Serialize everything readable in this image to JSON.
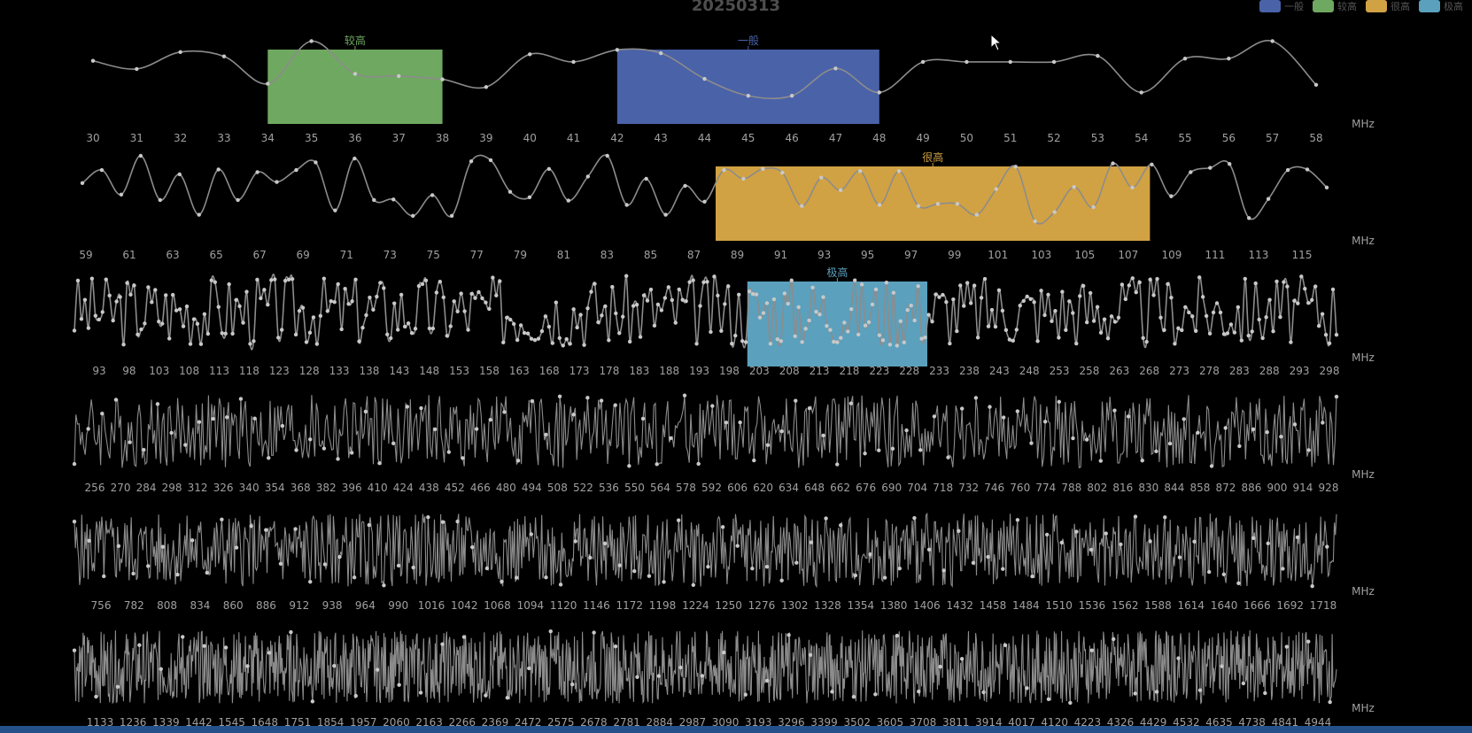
{
  "title": "20250313",
  "legend": [
    {
      "label": "一般",
      "color": "#4a62a8"
    },
    {
      "label": "较高",
      "color": "#6fa860"
    },
    {
      "label": "很高",
      "color": "#d1a243"
    },
    {
      "label": "极高",
      "color": "#5ba0bd"
    }
  ],
  "unit_label": "MHz",
  "chart_data": [
    {
      "type": "line",
      "xlabel": "MHz",
      "x_ticks": [
        "30",
        "31",
        "32",
        "33",
        "34",
        "35",
        "36",
        "37",
        "38",
        "39",
        "40",
        "41",
        "42",
        "43",
        "44",
        "45",
        "46",
        "47",
        "48",
        "49",
        "50",
        "51",
        "52",
        "53",
        "54",
        "55",
        "56",
        "57",
        "58"
      ],
      "x_range": [
        30,
        58
      ],
      "values": [
        0.8,
        0.65,
        0.96,
        0.88,
        0.38,
        1.16,
        0.56,
        0.52,
        0.46,
        0.32,
        0.92,
        0.78,
        1.0,
        0.94,
        0.47,
        0.16,
        0.16,
        0.66,
        0.22,
        0.78,
        0.78,
        0.78,
        0.78,
        0.89,
        0.22,
        0.84,
        0.84,
        1.16,
        0.36
      ],
      "highlights": [
        {
          "level": "较高",
          "from": 34,
          "to": 38
        },
        {
          "level": "一般",
          "from": 42,
          "to": 48
        }
      ]
    },
    {
      "type": "line",
      "xlabel": "MHz",
      "x_ticks": [
        "59",
        "61",
        "63",
        "65",
        "67",
        "69",
        "71",
        "73",
        "75",
        "77",
        "79",
        "81",
        "83",
        "85",
        "87",
        "89",
        "91",
        "93",
        "95",
        "97",
        "99",
        "101",
        "103",
        "105",
        "107",
        "109",
        "111",
        "113",
        "115"
      ],
      "x_range": [
        59,
        116
      ],
      "values": [
        0.7,
        0.94,
        0.49,
        1.2,
        0.39,
        0.86,
        0.12,
        0.95,
        0.39,
        0.9,
        0.72,
        0.94,
        1.08,
        0.2,
        1.15,
        0.39,
        0.4,
        0.1,
        0.48,
        0.1,
        1.1,
        1.12,
        0.54,
        0.44,
        0.96,
        0.38,
        0.82,
        1.2,
        0.3,
        0.78,
        0.12,
        0.65,
        0.36,
        0.94,
        0.78,
        0.96,
        0.89,
        0.28,
        0.8,
        0.57,
        0.92,
        0.3,
        0.92,
        0.28,
        0.32,
        0.32,
        0.12,
        0.59,
        1.0,
        0.0,
        0.17,
        0.63,
        0.26,
        1.06,
        0.62,
        1.04,
        0.46,
        0.9,
        0.98,
        1.05,
        0.06,
        0.41,
        0.94,
        0.95,
        0.62
      ],
      "highlights": [
        {
          "level": "很高",
          "from": 88,
          "to": 108
        }
      ]
    },
    {
      "type": "line",
      "xlabel": "MHz",
      "x_ticks": [
        "93",
        "98",
        "103",
        "108",
        "113",
        "118",
        "123",
        "128",
        "133",
        "138",
        "143",
        "148",
        "153",
        "158",
        "163",
        "168",
        "173",
        "178",
        "183",
        "188",
        "193",
        "198",
        "203",
        "208",
        "213",
        "218",
        "223",
        "228",
        "233",
        "238",
        "243",
        "248",
        "253",
        "258",
        "263",
        "268",
        "273",
        "278",
        "283",
        "288",
        "293",
        "298"
      ],
      "x_range": [
        90,
        300
      ],
      "seed": 3,
      "samples": 360,
      "highlights": [
        {
          "level": "极高",
          "from": 201,
          "to": 231
        }
      ]
    },
    {
      "type": "line",
      "xlabel": "MHz",
      "x_ticks": [
        "256",
        "270",
        "284",
        "298",
        "312",
        "326",
        "340",
        "354",
        "368",
        "382",
        "396",
        "410",
        "424",
        "438",
        "452",
        "466",
        "480",
        "494",
        "508",
        "522",
        "536",
        "550",
        "564",
        "578",
        "592",
        "606",
        "620",
        "634",
        "648",
        "662",
        "676",
        "690",
        "704",
        "718",
        "732",
        "746",
        "760",
        "774",
        "788",
        "802",
        "816",
        "830",
        "844",
        "858",
        "872",
        "886",
        "900",
        "914",
        "928"
      ],
      "x_range": [
        250,
        935
      ],
      "seed": 4,
      "samples": 820
    },
    {
      "type": "line",
      "xlabel": "MHz",
      "x_ticks": [
        "756",
        "782",
        "808",
        "834",
        "860",
        "886",
        "912",
        "938",
        "964",
        "990",
        "1016",
        "1042",
        "1068",
        "1094",
        "1120",
        "1146",
        "1172",
        "1198",
        "1224",
        "1250",
        "1276",
        "1302",
        "1328",
        "1354",
        "1380",
        "1406",
        "1432",
        "1458",
        "1484",
        "1510",
        "1536",
        "1562",
        "1588",
        "1614",
        "1640",
        "1666",
        "1692",
        "1718"
      ],
      "x_range": [
        745,
        1725
      ],
      "seed": 5,
      "samples": 1200
    },
    {
      "type": "line",
      "xlabel": "MHz",
      "x_ticks": [
        "1133",
        "1236",
        "1339",
        "1442",
        "1545",
        "1648",
        "1751",
        "1854",
        "1957",
        "2060",
        "2163",
        "2266",
        "2369",
        "2472",
        "2575",
        "2678",
        "2781",
        "2884",
        "2987",
        "3090",
        "3193",
        "3296",
        "3399",
        "3502",
        "3605",
        "3708",
        "3811",
        "3914",
        "4017",
        "4120",
        "4223",
        "4326",
        "4429",
        "4532",
        "4635",
        "4738",
        "4841",
        "4944"
      ],
      "x_range": [
        1090,
        4985
      ],
      "seed": 6,
      "samples": 1750
    }
  ]
}
